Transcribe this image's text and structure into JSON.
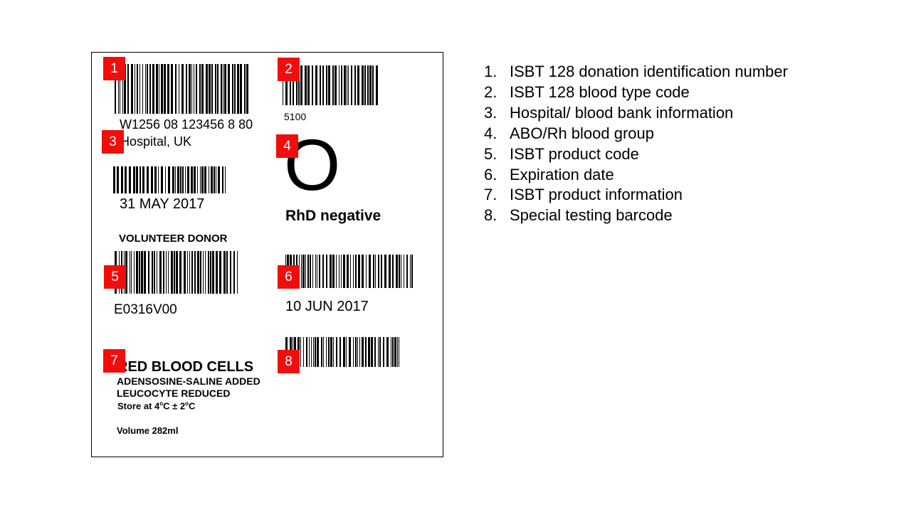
{
  "label": {
    "donation_id": "W1256 08 123456 8 80",
    "hospital": "Hospital, UK",
    "collection_date": "31 MAY 2017",
    "donor_type": "VOLUNTEER DONOR",
    "product_code": "E0316V00",
    "product_name": "RED BLOOD CELLS",
    "product_line1": "ADENSOSINE-SALINE ADDED",
    "product_line2": "LEUCOCYTE REDUCED",
    "storage_prefix": "Store at 4",
    "storage_mid": "C ± 2",
    "storage_suffix": "C",
    "storage_sup": "o",
    "volume": "Volume  282ml",
    "blood_type_code": "5100",
    "abo_group": "O",
    "rh": "RhD negative",
    "expiry_date": "10 JUN 2017"
  },
  "badges": [
    "1",
    "2",
    "3",
    "4",
    "5",
    "6",
    "7",
    "8"
  ],
  "legend": [
    {
      "num": "1.",
      "text": "ISBT 128 donation identification number"
    },
    {
      "num": "2.",
      "text": "ISBT 128 blood type code"
    },
    {
      "num": "3.",
      "text": "Hospital/ blood bank information"
    },
    {
      "num": "4.",
      "text": "ABO/Rh blood group"
    },
    {
      "num": "5.",
      "text": "ISBT product code"
    },
    {
      "num": "6.",
      "text": "Expiration date"
    },
    {
      "num": "7.",
      "text": "ISBT product information"
    },
    {
      "num": "8.",
      "text": "Special testing barcode"
    }
  ],
  "colors": {
    "badge": "#f20d0d",
    "ink": "#000000"
  }
}
